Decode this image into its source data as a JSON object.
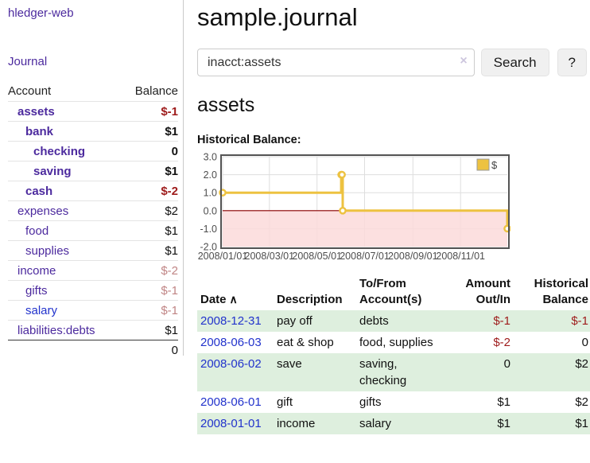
{
  "colors": {
    "link_purple": "#4c2a9e",
    "link_blue": "#2233cc",
    "negative_red": "#9e1b1b",
    "faded_red": "#c08585",
    "row_stripe_green": "#deefde",
    "chart_line_gold": "#edc240",
    "chart_zero_line": "#8b0000",
    "chart_negative_fill": "#fbdada",
    "chart_border": "#545454"
  },
  "sidebar": {
    "brand": "hledger-web",
    "nav": {
      "journal": "Journal"
    },
    "accounts_table": {
      "headers": {
        "account": "Account",
        "balance": "Balance"
      },
      "rows": [
        {
          "name": "assets",
          "balance": "$-1",
          "level": 1,
          "bold": true,
          "balance_class": "neg"
        },
        {
          "name": "bank",
          "balance": "$1",
          "level": 2,
          "bold": true,
          "balance_class": ""
        },
        {
          "name": "checking",
          "balance": "0",
          "level": 3,
          "bold": true,
          "balance_class": ""
        },
        {
          "name": "saving",
          "balance": "$1",
          "level": 3,
          "bold": true,
          "balance_class": ""
        },
        {
          "name": "cash",
          "balance": "$-2",
          "level": 2,
          "bold": true,
          "balance_class": "neg"
        },
        {
          "name": "expenses",
          "balance": "$2",
          "level": 1,
          "bold": false,
          "balance_class": ""
        },
        {
          "name": "food",
          "balance": "$1",
          "level": 2,
          "bold": false,
          "balance_class": ""
        },
        {
          "name": "supplies",
          "balance": "$1",
          "level": 2,
          "bold": false,
          "balance_class": ""
        },
        {
          "name": "income",
          "balance": "$-2",
          "level": 1,
          "bold": false,
          "balance_class": "faded"
        },
        {
          "name": "gifts",
          "balance": "$-1",
          "level": 2,
          "bold": false,
          "balance_class": "faded"
        },
        {
          "name": "salary",
          "balance": "$-1",
          "level": 2,
          "bold": false,
          "balance_class": "faded",
          "blue": true
        },
        {
          "name": "liabilities:debts",
          "balance": "$1",
          "level": 1,
          "bold": false,
          "balance_class": ""
        }
      ],
      "total": "0"
    }
  },
  "main": {
    "title": "sample.journal",
    "search": {
      "value": "inacct:assets",
      "clear_icon": "×",
      "search_button": "Search",
      "help_button": "?"
    },
    "account_heading": "assets",
    "chart_heading": "Historical Balance:"
  },
  "chart_data": {
    "type": "line",
    "step": true,
    "title": "Historical Balance",
    "legend": "$",
    "legend_position": "top-right",
    "grid": true,
    "xlim": [
      "2008-01-01",
      "2008-12-31"
    ],
    "ylim": [
      -2,
      3
    ],
    "y_ticks": [
      3.0,
      2.0,
      1.0,
      0.0,
      -1.0,
      -2.0
    ],
    "y_tick_labels": [
      "3.0",
      "2.0",
      "1.0",
      "0.0",
      "-1.0",
      "-2.0"
    ],
    "x_ticks": [
      {
        "date": "2008-01-01",
        "label": "2008/01/01"
      },
      {
        "date": "2008-03-01",
        "label": "2008/03/01"
      },
      {
        "date": "2008-05-01",
        "label": "2008/05/01"
      },
      {
        "date": "2008-07-01",
        "label": "2008/07/01"
      },
      {
        "date": "2008-09-01",
        "label": "2008/09/01"
      },
      {
        "date": "2008-11-01",
        "label": "2008/11/01"
      }
    ],
    "series": [
      {
        "name": "$",
        "points": [
          {
            "date": "2008-01-01",
            "value": 1
          },
          {
            "date": "2008-06-01",
            "value": 2
          },
          {
            "date": "2008-06-02",
            "value": 2
          },
          {
            "date": "2008-06-03",
            "value": 0
          },
          {
            "date": "2008-12-31",
            "value": -1
          }
        ]
      }
    ]
  },
  "register": {
    "headers": {
      "date": "Date",
      "sort_caret": "∧",
      "description": "Description",
      "accounts": "To/From Account(s)",
      "amount": "Amount Out/In",
      "balance": "Historical Balance"
    },
    "rows": [
      {
        "date": "2008-12-31",
        "description": "pay off",
        "accounts": "debts",
        "amount": "$-1",
        "balance": "$-1",
        "amount_neg": true,
        "balance_neg": true,
        "striped": true
      },
      {
        "date": "2008-06-03",
        "description": "eat & shop",
        "accounts": "food, supplies",
        "amount": "$-2",
        "balance": "0",
        "amount_neg": true,
        "balance_neg": false,
        "striped": false
      },
      {
        "date": "2008-06-02",
        "description": "save",
        "accounts": "saving, checking",
        "amount": "0",
        "balance": "$2",
        "amount_neg": false,
        "balance_neg": false,
        "striped": true
      },
      {
        "date": "2008-06-01",
        "description": "gift",
        "accounts": "gifts",
        "amount": "$1",
        "balance": "$2",
        "amount_neg": false,
        "balance_neg": false,
        "striped": false
      },
      {
        "date": "2008-01-01",
        "description": "income",
        "accounts": "salary",
        "amount": "$1",
        "balance": "$1",
        "amount_neg": false,
        "balance_neg": false,
        "striped": true
      }
    ]
  }
}
